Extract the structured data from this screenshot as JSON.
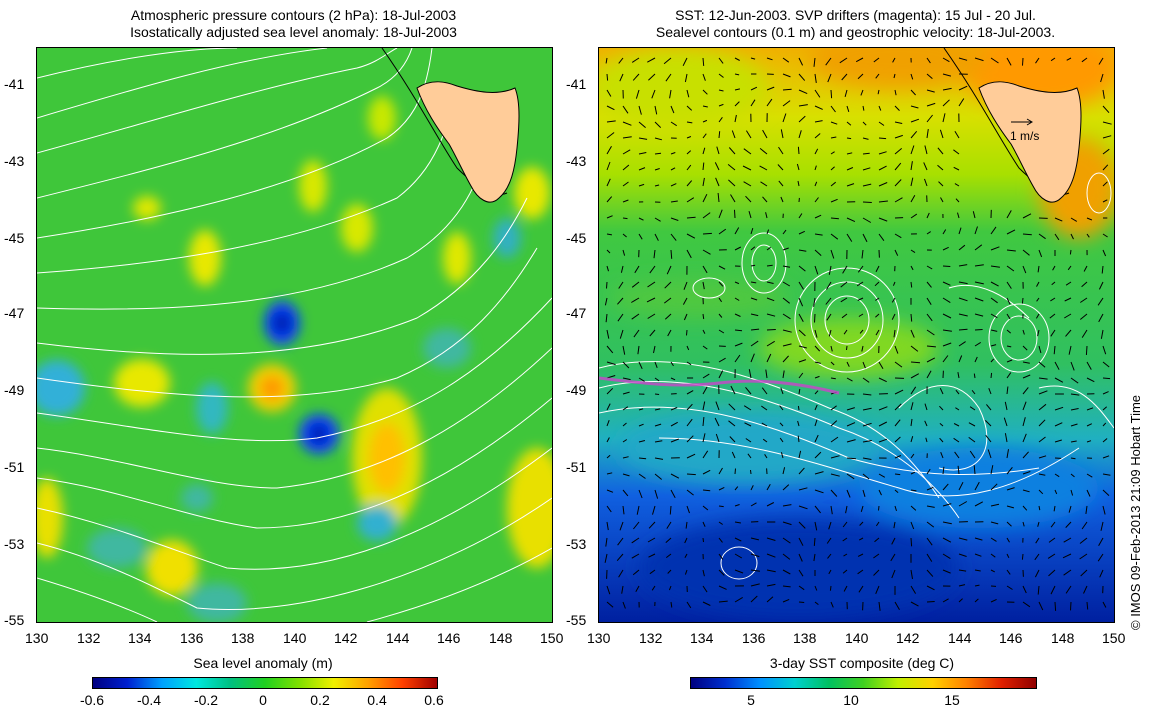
{
  "left_panel": {
    "title_line1": "Atmospheric pressure contours (2 hPa): 18-Jul-2003",
    "title_line2": "Isostatically adjusted sea level anomaly: 18-Jul-2003",
    "colorbar_label": "Sea level anomaly (m)",
    "colorbar_ticks": [
      "-0.6",
      "-0.4",
      "-0.2",
      "0",
      "0.2",
      "0.4",
      "0.6"
    ]
  },
  "right_panel": {
    "title_line1": "SST: 12-Jun-2003. SVP drifters (magenta): 15 Jul - 20 Jul.",
    "title_line2": "Sealevel contours (0.1 m) and geostrophic velocity: 18-Jul-2003.",
    "colorbar_label": "3-day SST composite (deg C)",
    "colorbar_ticks": [
      "5",
      "10",
      "15"
    ],
    "velocity_scale_label": "1 m/s"
  },
  "axes": {
    "latitude_ticks": [
      "-41",
      "-43",
      "-45",
      "-47",
      "-49",
      "-51",
      "-53",
      "-55"
    ],
    "longitude_ticks": [
      "130",
      "132",
      "134",
      "136",
      "138",
      "140",
      "142",
      "144",
      "146",
      "148",
      "150"
    ]
  },
  "credit": "© IMOS 09-Feb-2013 21:09 Hobart Time",
  "colors": {
    "land": "#ffcc99",
    "sea_level_background": "#33cc33",
    "contour": "#ffffff",
    "drifter": "#cc44cc"
  }
}
